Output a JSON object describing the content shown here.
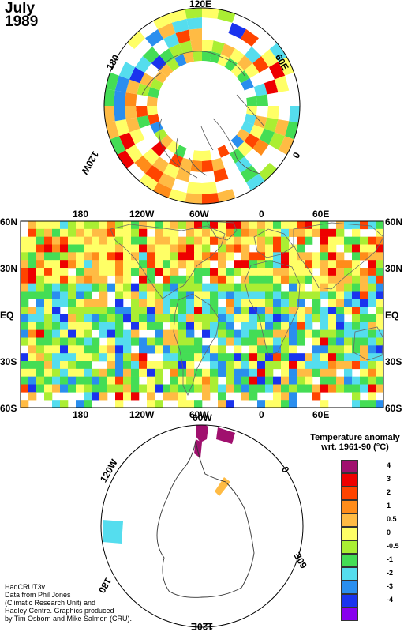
{
  "title": {
    "month": "July",
    "year": "1989"
  },
  "north_polar": {
    "labels": {
      "top": "120E",
      "right": "60E",
      "left": "180",
      "lower_left": "120W",
      "lower_right": "0"
    }
  },
  "main_map": {
    "top_labels": [
      "180",
      "120W",
      "60W",
      "0",
      "60E"
    ],
    "bottom_labels": [
      "180",
      "120W",
      "60W",
      "0",
      "60E"
    ],
    "left_labels": [
      "60N",
      "30N",
      "EQ",
      "30S",
      "60S"
    ],
    "right_labels": [
      "60N",
      "30N",
      "EQ",
      "30S",
      "60S"
    ]
  },
  "south_polar": {
    "labels": {
      "top": "60W",
      "upper_left": "120W",
      "right": "0",
      "lower_left": "180",
      "lower_right": "60E",
      "bottom": "120E"
    }
  },
  "legend": {
    "title_line1": "Temperature anomaly",
    "title_line2": "wrt. 1961-90  (°C)",
    "bins": [
      {
        "label": "4",
        "color": "#a0106e"
      },
      {
        "label": "3",
        "color": "#ee0000"
      },
      {
        "label": "2",
        "color": "#ff4400"
      },
      {
        "label": "1",
        "color": "#ff8c1a"
      },
      {
        "label": "0.5",
        "color": "#ffbb44"
      },
      {
        "label": "0",
        "color": "#ffff66"
      },
      {
        "label": "-0.5",
        "color": "#aaee33"
      },
      {
        "label": "-1",
        "color": "#44dd55"
      },
      {
        "label": "-2",
        "color": "#55ddee"
      },
      {
        "label": "-3",
        "color": "#2a8eee"
      },
      {
        "label": "-4",
        "color": "#1a33ee"
      },
      {
        "label": "",
        "color": "#8800ee"
      }
    ]
  },
  "credits": [
    "HadCRUT3v",
    "Data from Phil Jones",
    "(Climatic Research Unit) and",
    "Hadley Centre.  Graphics produced",
    "by Tim Osborn and Mike Salmon (CRU)."
  ]
}
